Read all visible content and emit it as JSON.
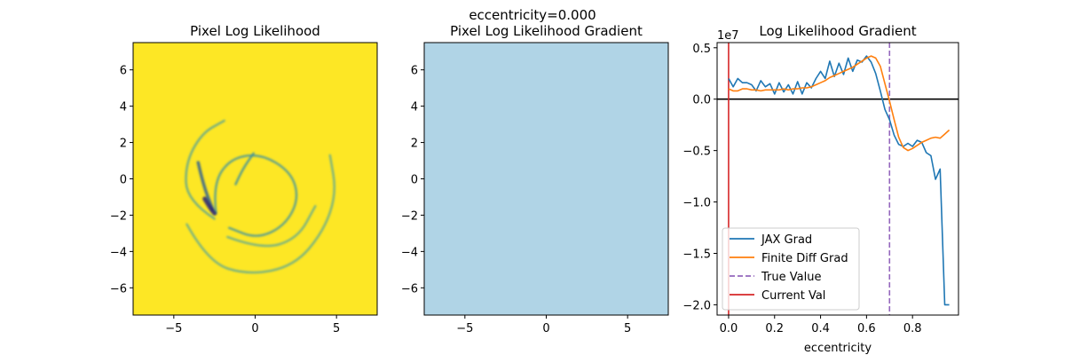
{
  "figure": {
    "suptitle": "eccentricity=0.000",
    "colors": {
      "frame": "#000000",
      "yellow_bg": "#fde725",
      "blue_bg": "#b0d4e6",
      "ink_dark": "#26207a",
      "ink_mid": "#3a8ea0",
      "ink_light": "#9ed17a"
    }
  },
  "chart_data": [
    {
      "type": "heatmap",
      "title": "Pixel Log Likelihood",
      "xlim": [
        -7.5,
        7.5
      ],
      "ylim": [
        -7.5,
        7.5
      ],
      "xticks": [
        -5,
        0,
        5
      ],
      "xtick_labels": [
        "−5",
        "0",
        "5"
      ],
      "yticks": [
        -6,
        -4,
        -2,
        0,
        2,
        4,
        6
      ],
      "ytick_labels": [
        "−6",
        "−4",
        "−2",
        "0",
        "2",
        "4",
        "6"
      ],
      "background_color": "#fde725",
      "colormap": "viridis",
      "features": [
        {
          "name": "outer-arc",
          "points": [
            [
              -2.5,
              -2.2
            ],
            [
              -4.2,
              -1.2
            ],
            [
              -4.3,
              0.8
            ],
            [
              -3.3,
              2.5
            ],
            [
              -1.9,
              3.2
            ]
          ],
          "intensity": 0.35
        },
        {
          "name": "bottom-swirl",
          "points": [
            [
              -4.2,
              -2.5
            ],
            [
              -2.9,
              -4.6
            ],
            [
              -0.4,
              -5.3
            ],
            [
              2.4,
              -4.8
            ],
            [
              4.2,
              -2.9
            ],
            [
              5.0,
              -0.8
            ],
            [
              4.6,
              1.3
            ]
          ],
          "intensity": 0.3
        },
        {
          "name": "inner-spiral",
          "points": [
            [
              -2.4,
              -1.9
            ],
            [
              -2.6,
              -0.4
            ],
            [
              -1.6,
              1.1
            ],
            [
              0.3,
              1.4
            ],
            [
              2.2,
              0.4
            ],
            [
              2.7,
              -1.1
            ],
            [
              1.8,
              -2.6
            ],
            [
              0.1,
              -3.3
            ],
            [
              -1.6,
              -2.7
            ]
          ],
          "intensity": 0.45
        },
        {
          "name": "left-streak",
          "points": [
            [
              -3.5,
              0.9
            ],
            [
              -3.2,
              -0.3
            ],
            [
              -2.6,
              -1.7
            ]
          ],
          "intensity": 0.7
        },
        {
          "name": "center-streak",
          "points": [
            [
              -1.2,
              -0.3
            ],
            [
              -0.8,
              0.5
            ],
            [
              -0.1,
              1.4
            ]
          ],
          "intensity": 0.5
        },
        {
          "name": "lower-arc",
          "points": [
            [
              -1.7,
              -3.2
            ],
            [
              0.4,
              -3.9
            ],
            [
              2.6,
              -3.3
            ],
            [
              3.7,
              -1.5
            ]
          ],
          "intensity": 0.3
        },
        {
          "name": "core-dark",
          "points": [
            [
              -3.1,
              -1.1
            ],
            [
              -2.8,
              -1.55
            ],
            [
              -2.5,
              -1.9
            ]
          ],
          "intensity": 1.0
        }
      ]
    },
    {
      "type": "heatmap",
      "title": "Pixel Log Likelihood Gradient",
      "xlim": [
        -7.5,
        7.5
      ],
      "ylim": [
        -7.5,
        7.5
      ],
      "xticks": [
        -5,
        0,
        5
      ],
      "xtick_labels": [
        "−5",
        "0",
        "5"
      ],
      "yticks": [
        -6,
        -4,
        -2,
        0,
        2,
        4,
        6
      ],
      "ytick_labels": [
        "−6",
        "−4",
        "−2",
        "0",
        "2",
        "4",
        "6"
      ],
      "background_color": "#b0d4e6",
      "colormap": "RdBu"
    },
    {
      "type": "line",
      "title": "Log Likelihood Gradient",
      "xlabel": "eccentricity",
      "ylabel": "",
      "offset_label": "1e7",
      "xlim": [
        -0.05,
        1.0
      ],
      "ylim": [
        -2.1,
        0.55
      ],
      "xticks": [
        0.0,
        0.2,
        0.4,
        0.6,
        0.8
      ],
      "xtick_labels": [
        "0.0",
        "0.2",
        "0.4",
        "0.6",
        "0.8"
      ],
      "yticks": [
        0.5,
        0.0,
        -0.5,
        -1.0,
        -1.5,
        -2.0
      ],
      "ytick_labels": [
        "0.5",
        "0.0",
        "−0.5",
        "−1.0",
        "−1.5",
        "−2.0"
      ],
      "hline": {
        "y": 0.0,
        "color": "#000000"
      },
      "vlines": [
        {
          "name": "True Value",
          "x": 0.7,
          "color": "#9467bd",
          "dashed": true
        },
        {
          "name": "Current Val",
          "x": 0.0,
          "color": "#d62728",
          "dashed": false
        }
      ],
      "series": [
        {
          "name": "JAX Grad",
          "color": "#1f77b4",
          "x": [
            0.0,
            0.02,
            0.04,
            0.06,
            0.08,
            0.1,
            0.12,
            0.14,
            0.16,
            0.18,
            0.2,
            0.22,
            0.24,
            0.26,
            0.28,
            0.3,
            0.32,
            0.34,
            0.36,
            0.38,
            0.4,
            0.42,
            0.44,
            0.46,
            0.48,
            0.5,
            0.52,
            0.54,
            0.56,
            0.58,
            0.6,
            0.62,
            0.64,
            0.66,
            0.68,
            0.7,
            0.72,
            0.74,
            0.76,
            0.78,
            0.8,
            0.82,
            0.84,
            0.86,
            0.88,
            0.9,
            0.92,
            0.94,
            0.96
          ],
          "values": [
            0.2,
            0.12,
            0.2,
            0.16,
            0.16,
            0.14,
            0.08,
            0.18,
            0.12,
            0.15,
            0.05,
            0.16,
            0.07,
            0.14,
            0.05,
            0.17,
            0.05,
            0.16,
            0.11,
            0.2,
            0.27,
            0.2,
            0.37,
            0.22,
            0.35,
            0.24,
            0.4,
            0.27,
            0.38,
            0.36,
            0.42,
            0.36,
            0.25,
            0.08,
            -0.1,
            -0.2,
            -0.35,
            -0.44,
            -0.46,
            -0.43,
            -0.46,
            -0.4,
            -0.42,
            -0.52,
            -0.55,
            -0.78,
            -0.68,
            -2.0,
            -2.0
          ]
        },
        {
          "name": "Finite Diff Grad",
          "color": "#ff7f0e",
          "x": [
            0.0,
            0.02,
            0.04,
            0.06,
            0.08,
            0.1,
            0.12,
            0.14,
            0.16,
            0.18,
            0.2,
            0.22,
            0.24,
            0.26,
            0.28,
            0.3,
            0.32,
            0.34,
            0.36,
            0.38,
            0.4,
            0.42,
            0.44,
            0.46,
            0.48,
            0.5,
            0.52,
            0.54,
            0.56,
            0.58,
            0.6,
            0.62,
            0.64,
            0.66,
            0.68,
            0.7,
            0.72,
            0.74,
            0.76,
            0.78,
            0.8,
            0.82,
            0.84,
            0.86,
            0.88,
            0.9,
            0.92,
            0.94,
            0.96
          ],
          "values": [
            0.1,
            0.08,
            0.08,
            0.1,
            0.1,
            0.09,
            0.09,
            0.08,
            0.09,
            0.09,
            0.09,
            0.09,
            0.1,
            0.09,
            0.1,
            0.1,
            0.11,
            0.11,
            0.12,
            0.14,
            0.16,
            0.18,
            0.21,
            0.23,
            0.25,
            0.27,
            0.29,
            0.31,
            0.34,
            0.37,
            0.4,
            0.42,
            0.4,
            0.32,
            0.15,
            -0.02,
            -0.2,
            -0.37,
            -0.47,
            -0.5,
            -0.48,
            -0.45,
            -0.42,
            -0.4,
            -0.38,
            -0.37,
            -0.38,
            -0.34,
            -0.3
          ]
        }
      ],
      "legend": {
        "position": "lower-left",
        "entries": [
          {
            "label": "JAX Grad",
            "color": "#1f77b4",
            "dashed": false
          },
          {
            "label": "Finite Diff Grad",
            "color": "#ff7f0e",
            "dashed": false
          },
          {
            "label": "True Value",
            "color": "#9467bd",
            "dashed": true
          },
          {
            "label": "Current Val",
            "color": "#d62728",
            "dashed": false
          }
        ]
      }
    }
  ]
}
